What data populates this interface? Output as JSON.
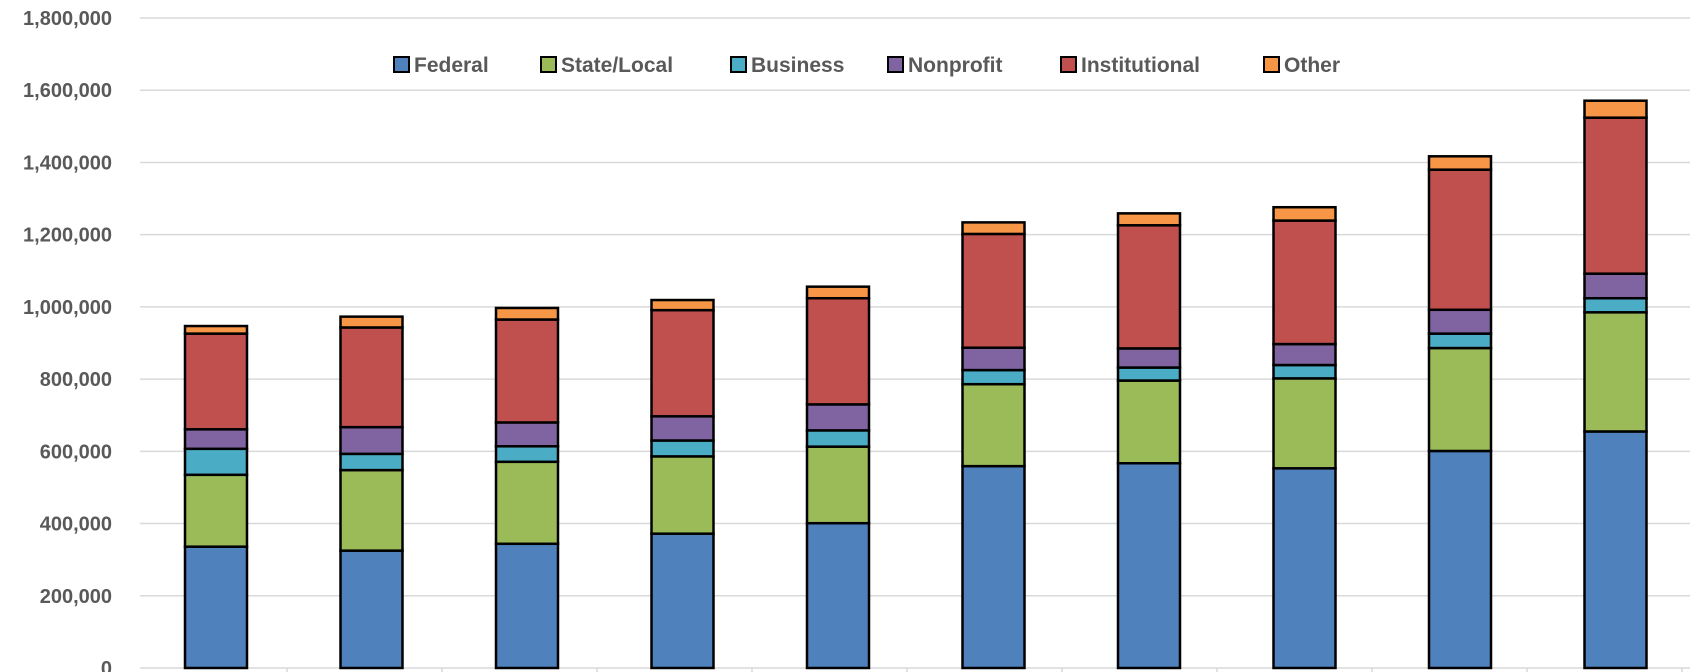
{
  "colors": {
    "Federal": "#4f81bd",
    "State/Local": "#9bbb59",
    "Business": "#4bacc6",
    "Nonprofit": "#8064a2",
    "Institutional": "#c0504d",
    "Other": "#f79646",
    "grid": "#d9d9d9",
    "outline": "#000000"
  },
  "chart_data": {
    "type": "bar",
    "stacked": true,
    "categories": [
      "",
      "",
      "",
      "",
      "",
      "",
      "",
      "",
      "",
      ""
    ],
    "ylim": [
      0,
      1800000
    ],
    "yticks": [
      0,
      200000,
      400000,
      600000,
      800000,
      1000000,
      1200000,
      1400000,
      1600000,
      1800000
    ],
    "ytick_labels": [
      "0",
      "200,000",
      "400,000",
      "600,000",
      "800,000",
      "1,000,000",
      "1,200,000",
      "1,400,000",
      "1,600,000",
      "1,800,000"
    ],
    "grid": true,
    "legend_position": "top-center",
    "series": [
      {
        "name": "Federal",
        "values": [
          336000,
          325000,
          344000,
          372000,
          401000,
          559000,
          567000,
          553000,
          601000,
          655000
        ]
      },
      {
        "name": "State/Local",
        "values": [
          199000,
          223000,
          227000,
          214000,
          212000,
          227000,
          229000,
          249000,
          285000,
          330000
        ]
      },
      {
        "name": "Business",
        "values": [
          72000,
          45000,
          43000,
          44000,
          45000,
          39000,
          36000,
          37000,
          40000,
          39000
        ]
      },
      {
        "name": "Nonprofit",
        "values": [
          54000,
          74000,
          66000,
          67000,
          72000,
          62000,
          53000,
          58000,
          66000,
          68000
        ]
      },
      {
        "name": "Institutional",
        "values": [
          265000,
          276000,
          285000,
          294000,
          294000,
          315000,
          341000,
          342000,
          388000,
          432000
        ]
      },
      {
        "name": "Other",
        "values": [
          21000,
          30000,
          32000,
          28000,
          32000,
          32000,
          33000,
          37000,
          37000,
          47000
        ]
      }
    ]
  }
}
